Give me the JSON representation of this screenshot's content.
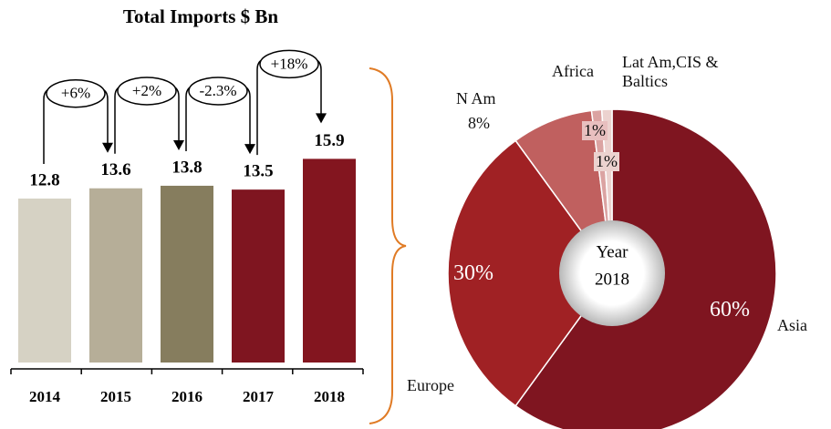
{
  "chart_data": [
    {
      "type": "bar",
      "title": "Total Imports $ Bn",
      "categories": [
        "2014",
        "2015",
        "2016",
        "2017",
        "2018"
      ],
      "values": [
        12.8,
        13.6,
        13.8,
        13.5,
        15.9
      ],
      "colors": [
        "#d6d2c4",
        "#b6ae98",
        "#867d5e",
        "#7f1520",
        "#83151f"
      ],
      "ylim": [
        0,
        16
      ],
      "annotations": [
        "+6%",
        "+2%",
        "-2.3%",
        "+18%"
      ]
    },
    {
      "type": "donut",
      "categories": [
        "Asia",
        "Europe",
        "N Am",
        "Africa",
        "Lat Am,CIS & Baltics"
      ],
      "values": [
        60,
        30,
        8,
        1,
        1
      ],
      "value_labels": [
        "60%",
        "30%",
        "8%",
        "1%",
        "1%"
      ],
      "colors": [
        "#7f1520",
        "#a02124",
        "#c0605f",
        "#dba3a2",
        "#ecd2cf"
      ],
      "center_label": [
        "Year",
        "2018"
      ]
    }
  ]
}
